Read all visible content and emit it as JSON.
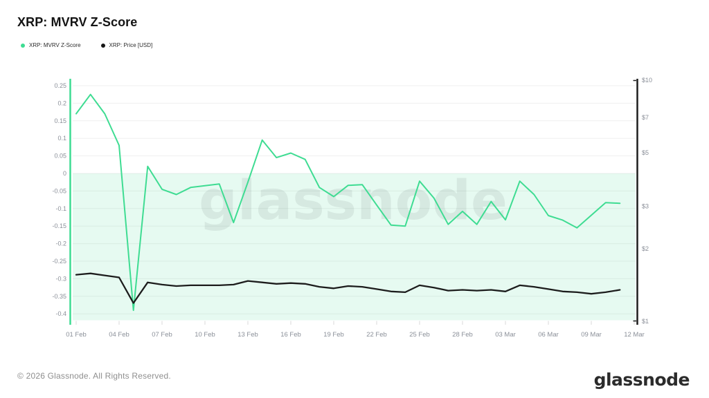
{
  "page_title": "XRP: MVRV Z-Score",
  "legend": {
    "items": [
      {
        "label": "XRP: MVRV Z-Score",
        "color": "#3edc92"
      },
      {
        "label": "XRP: Price [USD]",
        "color": "#161616"
      }
    ]
  },
  "watermark_text": "glassnode",
  "footer": {
    "copyright": "© 2026 Glassnode. All Rights Reserved.",
    "logo_text": "glassnode"
  },
  "colors": {
    "mvrv_line": "#3edc92",
    "price_line": "#1c1c1c",
    "below_zero_fill": "rgba(62,216,144,0.13)",
    "grid": "#efefef",
    "axis_label": "#8a8f98",
    "x_tick_mark": "#d8d8d8",
    "left_axis_line": "#3edc92",
    "right_axis_line": "#1c1c1c",
    "watermark_fill": "rgba(30,35,40,0.08)"
  },
  "chart_data": {
    "type": "line",
    "title": "XRP: MVRV Z-Score",
    "grid": "horizontal",
    "legend_position": "top-left",
    "below_zero_band": true,
    "x": [
      "01 Feb",
      "02 Feb",
      "03 Feb",
      "04 Feb",
      "05 Feb",
      "06 Feb",
      "07 Feb",
      "08 Feb",
      "09 Feb",
      "10 Feb",
      "11 Feb",
      "12 Feb",
      "13 Feb",
      "14 Feb",
      "15 Feb",
      "16 Feb",
      "17 Feb",
      "18 Feb",
      "19 Feb",
      "20 Feb",
      "21 Feb",
      "22 Feb",
      "23 Feb",
      "24 Feb",
      "25 Feb",
      "26 Feb",
      "27 Feb",
      "28 Feb",
      "01 Mar",
      "02 Mar",
      "03 Mar",
      "04 Mar",
      "05 Mar",
      "06 Mar",
      "07 Mar",
      "08 Mar",
      "09 Mar",
      "10 Mar",
      "11 Mar"
    ],
    "series": [
      {
        "name": "XRP: MVRV Z-Score",
        "axis": "left",
        "color": "#3edc92",
        "values": [
          0.17,
          0.225,
          0.17,
          0.08,
          -0.39,
          0.02,
          -0.045,
          -0.06,
          -0.04,
          -0.035,
          -0.03,
          -0.14,
          -0.025,
          0.095,
          0.045,
          0.058,
          0.04,
          -0.04,
          -0.066,
          -0.034,
          -0.032,
          -0.09,
          -0.147,
          -0.15,
          -0.022,
          -0.07,
          -0.145,
          -0.108,
          -0.145,
          -0.08,
          -0.132,
          -0.022,
          -0.06,
          -0.12,
          -0.133,
          -0.155,
          -0.119,
          -0.083,
          -0.085
        ]
      },
      {
        "name": "XRP: Price [USD]",
        "axis": "right",
        "color": "#1c1c1c",
        "values": [
          1.56,
          1.58,
          1.55,
          1.52,
          1.19,
          1.45,
          1.42,
          1.4,
          1.41,
          1.41,
          1.41,
          1.42,
          1.47,
          1.45,
          1.43,
          1.44,
          1.43,
          1.39,
          1.37,
          1.4,
          1.39,
          1.36,
          1.33,
          1.32,
          1.41,
          1.38,
          1.34,
          1.35,
          1.34,
          1.35,
          1.33,
          1.41,
          1.39,
          1.36,
          1.33,
          1.32,
          1.3,
          1.32,
          1.35
        ]
      }
    ],
    "left_axis": {
      "scale": "linear",
      "range": [
        -0.425,
        0.27
      ],
      "ticks": [
        0.25,
        0.2,
        0.15,
        0.1,
        0.05,
        0,
        -0.05,
        -0.1,
        -0.15,
        -0.2,
        -0.25,
        -0.3,
        -0.35,
        -0.4
      ],
      "tick_labels": [
        "0.25",
        "0.2",
        "0.15",
        "0.1",
        "0.05",
        "0",
        "-0.05",
        "-0.1",
        "-0.15",
        "-0.2",
        "-0.25",
        "-0.3",
        "-0.35",
        "-0.4"
      ]
    },
    "right_axis": {
      "scale": "log",
      "range": [
        1,
        10
      ],
      "ticks": [
        10,
        7,
        5,
        3,
        2,
        1
      ],
      "tick_labels": [
        "$10",
        "$7",
        "$5",
        "$3",
        "$2",
        "$1"
      ]
    },
    "x_ticks": {
      "labels": [
        "01 Feb",
        "04 Feb",
        "07 Feb",
        "10 Feb",
        "13 Feb",
        "16 Feb",
        "19 Feb",
        "22 Feb",
        "25 Feb",
        "28 Feb",
        "03 Mar",
        "06 Mar",
        "09 Mar",
        "12 Mar"
      ],
      "day_indices": [
        0,
        3,
        6,
        9,
        12,
        15,
        18,
        21,
        24,
        27,
        30,
        33,
        36,
        39
      ]
    }
  }
}
